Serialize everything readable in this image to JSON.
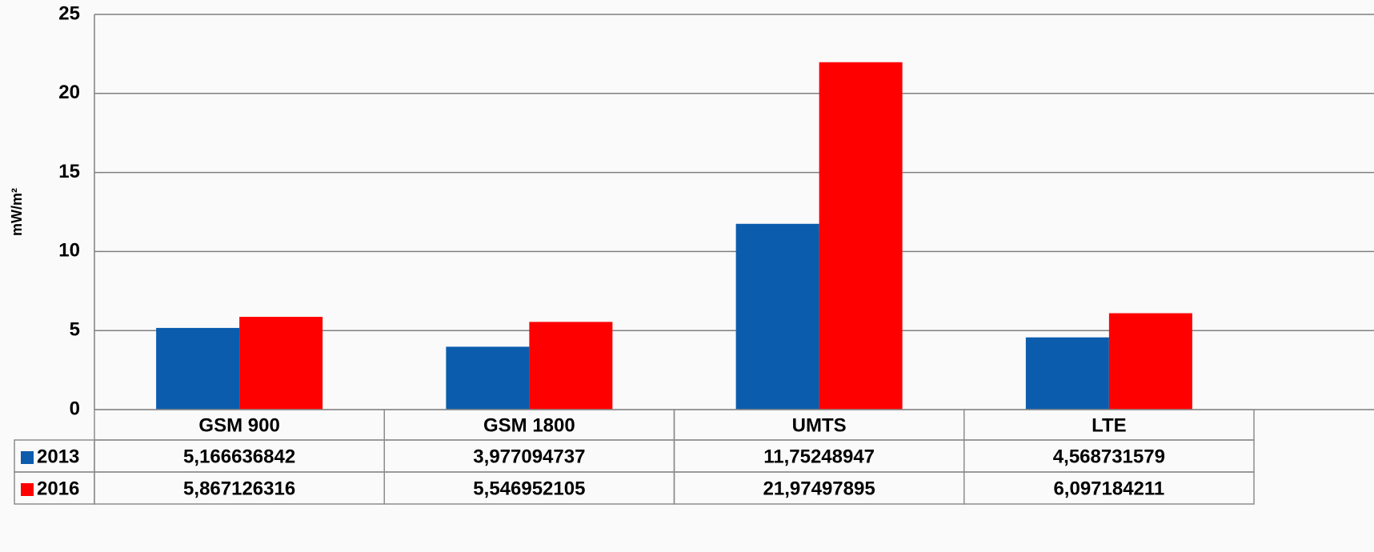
{
  "chart_data": {
    "type": "bar",
    "y_label": "mW/m²",
    "categories": [
      "GSM 900",
      "GSM 1800",
      "UMTS",
      "LTE"
    ],
    "series": [
      {
        "name": "2013",
        "color": "#0b5cad",
        "values": [
          5.166636842,
          3.977094737,
          11.75248947,
          4.568731579
        ],
        "value_labels": [
          "5,166636842",
          "3,977094737",
          "11,75248947",
          "4,568731579"
        ]
      },
      {
        "name": "2016",
        "color": "#ff0000",
        "values": [
          5.867126316,
          5.546952105,
          21.97497895,
          6.097184211
        ],
        "value_labels": [
          "5,867126316",
          "5,546952105",
          "21,97497895",
          "6,097184211"
        ]
      }
    ],
    "ylim": [
      0,
      25
    ],
    "yticks": [
      0,
      5,
      10,
      15,
      20,
      25
    ],
    "grid": true
  }
}
